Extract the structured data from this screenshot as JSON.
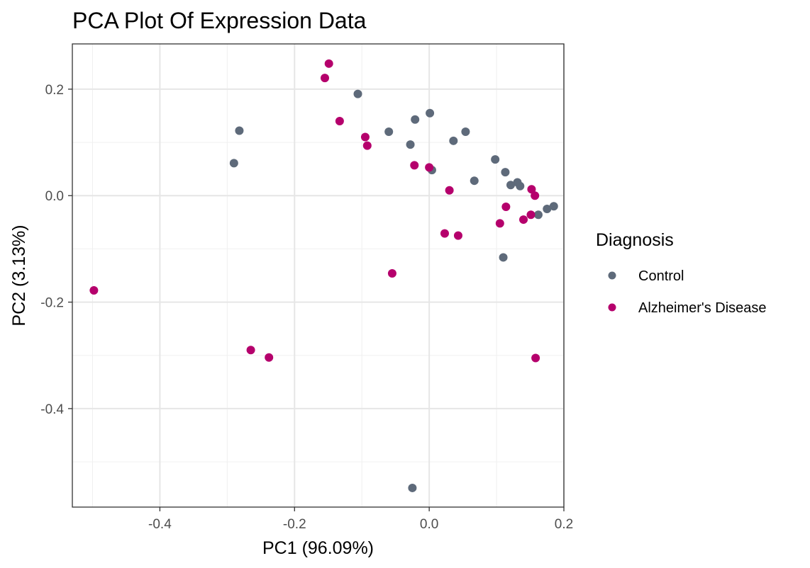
{
  "chart_data": {
    "type": "scatter",
    "title": "PCA Plot Of Expression Data",
    "xlabel": "PC1 (96.09%)",
    "ylabel": "PC2 (3.13%)",
    "xlim": [
      -0.53,
      0.2
    ],
    "ylim": [
      -0.585,
      0.285
    ],
    "x_ticks": [
      -0.4,
      -0.2,
      0.0,
      0.2
    ],
    "x_tick_labels": [
      "-0.4",
      "-0.2",
      "0.0",
      "0.2"
    ],
    "y_ticks": [
      0.2,
      0.0,
      -0.2,
      -0.4
    ],
    "y_tick_labels": [
      "0.2",
      "0.0",
      "-0.2",
      "-0.4"
    ],
    "grid": true,
    "legend": {
      "title": "Diagnosis",
      "position": "right"
    },
    "series": [
      {
        "name": "Control",
        "color": "#5e6a7a",
        "points": [
          [
            -0.29,
            0.061
          ],
          [
            -0.282,
            0.122
          ],
          [
            -0.106,
            0.191
          ],
          [
            -0.06,
            0.12
          ],
          [
            -0.028,
            0.096
          ],
          [
            -0.021,
            0.143
          ],
          [
            0.001,
            0.155
          ],
          [
            0.004,
            0.048
          ],
          [
            0.036,
            0.103
          ],
          [
            0.054,
            0.12
          ],
          [
            0.067,
            0.028
          ],
          [
            0.098,
            0.068
          ],
          [
            0.113,
            0.044
          ],
          [
            0.121,
            0.02
          ],
          [
            0.131,
            0.025
          ],
          [
            0.135,
            0.018
          ],
          [
            0.162,
            -0.036
          ],
          [
            0.175,
            -0.025
          ],
          [
            0.185,
            -0.02
          ],
          [
            0.11,
            -0.116
          ],
          [
            -0.025,
            -0.549
          ]
        ]
      },
      {
        "name": "Alzheimer's Disease",
        "color": "#b5006c",
        "points": [
          [
            -0.498,
            -0.178
          ],
          [
            -0.265,
            -0.29
          ],
          [
            -0.238,
            -0.304
          ],
          [
            -0.155,
            0.221
          ],
          [
            -0.149,
            0.248
          ],
          [
            -0.133,
            0.14
          ],
          [
            -0.095,
            0.11
          ],
          [
            -0.092,
            0.094
          ],
          [
            -0.055,
            -0.146
          ],
          [
            -0.022,
            0.057
          ],
          [
            0.0,
            0.053
          ],
          [
            0.023,
            -0.071
          ],
          [
            0.03,
            0.01
          ],
          [
            0.043,
            -0.075
          ],
          [
            0.105,
            -0.052
          ],
          [
            0.114,
            -0.021
          ],
          [
            0.14,
            -0.045
          ],
          [
            0.151,
            -0.036
          ],
          [
            0.152,
            0.012
          ],
          [
            0.157,
            0.0
          ],
          [
            0.158,
            -0.305
          ]
        ]
      }
    ]
  }
}
